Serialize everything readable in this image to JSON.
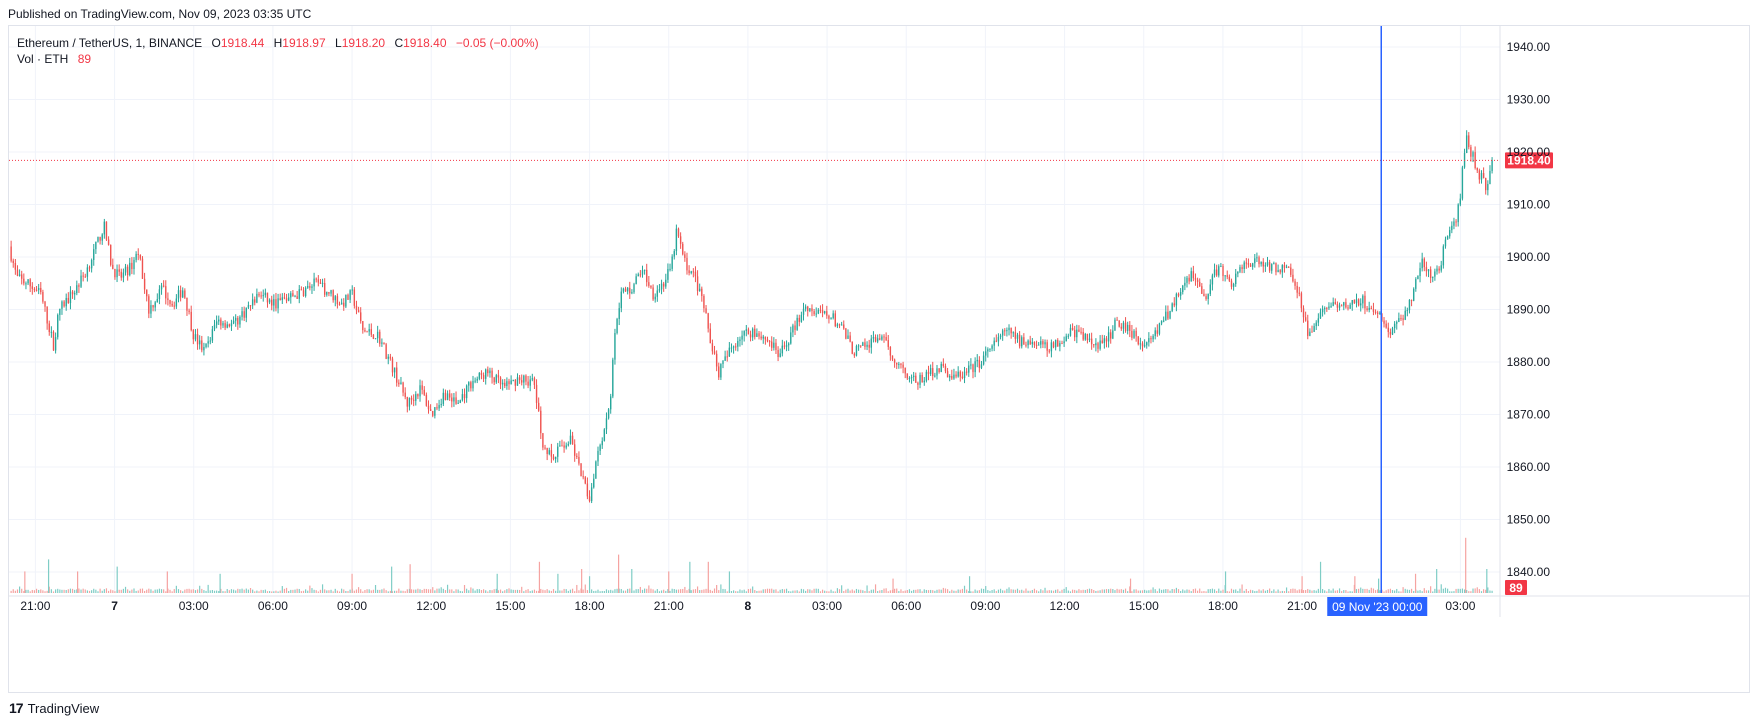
{
  "published": "Published on TradingView.com, Nov 09, 2023 03:35 UTC",
  "legend": {
    "symbol": "Ethereum / TetherUS, 1, BINANCE",
    "o_label": "O",
    "o": "1918.44",
    "h_label": "H",
    "h": "1918.97",
    "l_label": "L",
    "l": "1918.20",
    "c_label": "C",
    "c": "1918.40",
    "change": "−0.05 (−0.00%)",
    "vol_label": "Vol · ETH",
    "vol_value": "89"
  },
  "footer": {
    "brand": "TradingView",
    "logo": "17"
  },
  "colors": {
    "up": "#26a69a",
    "down": "#ef5350",
    "crosshair": "#2962ff",
    "price_tag": "#f23645",
    "grid": "#f0f3fa"
  },
  "chart_data": {
    "type": "candlestick",
    "title": "Ethereum / TetherUS, 1, BINANCE",
    "ylim": [
      1836,
      1944
    ],
    "y_ticks": [
      "1940.00",
      "1930.00",
      "1920.00",
      "1910.00",
      "1900.00",
      "1890.00",
      "1880.00",
      "1870.00",
      "1860.00",
      "1850.00",
      "1840.00"
    ],
    "x_ticks": [
      {
        "label": "21:00",
        "hour": 0,
        "bold": false
      },
      {
        "label": "7",
        "hour": 3,
        "bold": true
      },
      {
        "label": "03:00",
        "hour": 6,
        "bold": false
      },
      {
        "label": "06:00",
        "hour": 9,
        "bold": false
      },
      {
        "label": "09:00",
        "hour": 12,
        "bold": false
      },
      {
        "label": "12:00",
        "hour": 15,
        "bold": false
      },
      {
        "label": "15:00",
        "hour": 18,
        "bold": false
      },
      {
        "label": "18:00",
        "hour": 21,
        "bold": false
      },
      {
        "label": "21:00",
        "hour": 24,
        "bold": false
      },
      {
        "label": "8",
        "hour": 27,
        "bold": true
      },
      {
        "label": "03:00",
        "hour": 30,
        "bold": false
      },
      {
        "label": "06:00",
        "hour": 33,
        "bold": false
      },
      {
        "label": "09:00",
        "hour": 36,
        "bold": false
      },
      {
        "label": "12:00",
        "hour": 39,
        "bold": false
      },
      {
        "label": "15:00",
        "hour": 42,
        "bold": false
      },
      {
        "label": "18:00",
        "hour": 45,
        "bold": false
      },
      {
        "label": "21:00",
        "hour": 48,
        "bold": false
      },
      {
        "label": "03:00",
        "hour": 54,
        "bold": false
      }
    ],
    "x_range_hours": [
      -1.0,
      55.5
    ],
    "crosshair": {
      "label": "09 Nov '23   00:00",
      "hour": 51
    },
    "last_price": "1918.40",
    "last_volume": "89",
    "price_path": [
      [
        -1.0,
        1902
      ],
      [
        -0.7,
        1896
      ],
      [
        -0.3,
        1895
      ],
      [
        0.2,
        1893
      ],
      [
        0.5,
        1887
      ],
      [
        0.7,
        1883
      ],
      [
        0.9,
        1890
      ],
      [
        1.4,
        1893
      ],
      [
        1.9,
        1897
      ],
      [
        2.3,
        1902
      ],
      [
        2.6,
        1906
      ],
      [
        2.9,
        1898
      ],
      [
        3.2,
        1896
      ],
      [
        3.6,
        1898
      ],
      [
        3.9,
        1901
      ],
      [
        4.3,
        1890
      ],
      [
        4.8,
        1894
      ],
      [
        5.2,
        1891
      ],
      [
        5.6,
        1894
      ],
      [
        6.0,
        1885
      ],
      [
        6.4,
        1882
      ],
      [
        6.9,
        1888
      ],
      [
        7.5,
        1887
      ],
      [
        8.0,
        1890
      ],
      [
        8.5,
        1893
      ],
      [
        9.0,
        1891
      ],
      [
        9.5,
        1892
      ],
      [
        10.0,
        1893
      ],
      [
        10.6,
        1895
      ],
      [
        11.2,
        1893
      ],
      [
        11.6,
        1891
      ],
      [
        12.0,
        1893
      ],
      [
        12.4,
        1886
      ],
      [
        13.0,
        1885
      ],
      [
        13.7,
        1877
      ],
      [
        14.1,
        1872
      ],
      [
        14.6,
        1875
      ],
      [
        15.0,
        1870
      ],
      [
        15.5,
        1874
      ],
      [
        16.0,
        1872
      ],
      [
        16.5,
        1876
      ],
      [
        17.1,
        1878
      ],
      [
        17.8,
        1875
      ],
      [
        18.3,
        1877
      ],
      [
        18.9,
        1876
      ],
      [
        19.2,
        1865
      ],
      [
        19.6,
        1861
      ],
      [
        19.9,
        1864
      ],
      [
        20.3,
        1865
      ],
      [
        20.7,
        1858
      ],
      [
        21.0,
        1854
      ],
      [
        21.3,
        1863
      ],
      [
        21.6,
        1868
      ],
      [
        21.8,
        1874
      ],
      [
        22.0,
        1888
      ],
      [
        22.2,
        1893
      ],
      [
        22.6,
        1894
      ],
      [
        23.0,
        1898
      ],
      [
        23.4,
        1893
      ],
      [
        23.8,
        1895
      ],
      [
        24.1,
        1898
      ],
      [
        24.3,
        1905
      ],
      [
        24.6,
        1899
      ],
      [
        25.0,
        1896
      ],
      [
        25.3,
        1891
      ],
      [
        25.6,
        1884
      ],
      [
        25.9,
        1878
      ],
      [
        26.3,
        1882
      ],
      [
        26.7,
        1885
      ],
      [
        27.2,
        1886
      ],
      [
        27.8,
        1884
      ],
      [
        28.2,
        1881
      ],
      [
        28.7,
        1886
      ],
      [
        29.2,
        1891
      ],
      [
        29.6,
        1889
      ],
      [
        30.1,
        1889
      ],
      [
        30.6,
        1886
      ],
      [
        31.0,
        1882
      ],
      [
        31.5,
        1883
      ],
      [
        32.0,
        1885
      ],
      [
        32.5,
        1881
      ],
      [
        33.0,
        1878
      ],
      [
        33.4,
        1876
      ],
      [
        33.9,
        1878
      ],
      [
        34.3,
        1879
      ],
      [
        34.8,
        1877
      ],
      [
        35.3,
        1878
      ],
      [
        35.8,
        1880
      ],
      [
        36.3,
        1883
      ],
      [
        36.8,
        1886
      ],
      [
        37.3,
        1884
      ],
      [
        37.7,
        1884
      ],
      [
        38.1,
        1883
      ],
      [
        38.6,
        1883
      ],
      [
        39.2,
        1886
      ],
      [
        39.7,
        1885
      ],
      [
        40.2,
        1883
      ],
      [
        40.6,
        1884
      ],
      [
        41.0,
        1888
      ],
      [
        41.5,
        1886
      ],
      [
        42.0,
        1883
      ],
      [
        42.5,
        1886
      ],
      [
        43.0,
        1890
      ],
      [
        43.4,
        1894
      ],
      [
        43.8,
        1897
      ],
      [
        44.3,
        1892
      ],
      [
        44.8,
        1898
      ],
      [
        45.3,
        1895
      ],
      [
        45.9,
        1899
      ],
      [
        46.4,
        1899
      ],
      [
        46.9,
        1898
      ],
      [
        47.4,
        1898
      ],
      [
        47.9,
        1893
      ],
      [
        48.2,
        1886
      ],
      [
        48.5,
        1887
      ],
      [
        48.9,
        1891
      ],
      [
        49.4,
        1890
      ],
      [
        49.8,
        1891
      ],
      [
        50.3,
        1892
      ],
      [
        50.6,
        1889
      ],
      [
        51.0,
        1889
      ],
      [
        51.3,
        1885
      ],
      [
        51.7,
        1888
      ],
      [
        52.1,
        1891
      ],
      [
        52.5,
        1899
      ],
      [
        52.9,
        1896
      ],
      [
        53.2,
        1898
      ],
      [
        53.5,
        1904
      ],
      [
        53.8,
        1906
      ],
      [
        54.0,
        1912
      ],
      [
        54.2,
        1923
      ],
      [
        54.4,
        1920
      ],
      [
        54.7,
        1916
      ],
      [
        55.0,
        1913
      ],
      [
        55.2,
        1918.4
      ]
    ],
    "volume_spikes": [
      [
        -0.4,
        9
      ],
      [
        0.5,
        14
      ],
      [
        1.6,
        9
      ],
      [
        3.1,
        11
      ],
      [
        5.0,
        9
      ],
      [
        7.0,
        8
      ],
      [
        12.0,
        8
      ],
      [
        13.5,
        11
      ],
      [
        14.2,
        12
      ],
      [
        17.5,
        8
      ],
      [
        19.1,
        13
      ],
      [
        19.8,
        8
      ],
      [
        20.7,
        10
      ],
      [
        21.0,
        7
      ],
      [
        22.1,
        16
      ],
      [
        22.6,
        10
      ],
      [
        24.0,
        9
      ],
      [
        24.8,
        13
      ],
      [
        25.5,
        13
      ],
      [
        26.3,
        9
      ],
      [
        32.5,
        6
      ],
      [
        35.4,
        7
      ],
      [
        41.5,
        6
      ],
      [
        45.1,
        9
      ],
      [
        48.0,
        7
      ],
      [
        48.7,
        13
      ],
      [
        50.0,
        7
      ],
      [
        50.9,
        6
      ],
      [
        52.3,
        8
      ],
      [
        53.1,
        10
      ],
      [
        54.2,
        23
      ],
      [
        55.0,
        10
      ]
    ]
  }
}
